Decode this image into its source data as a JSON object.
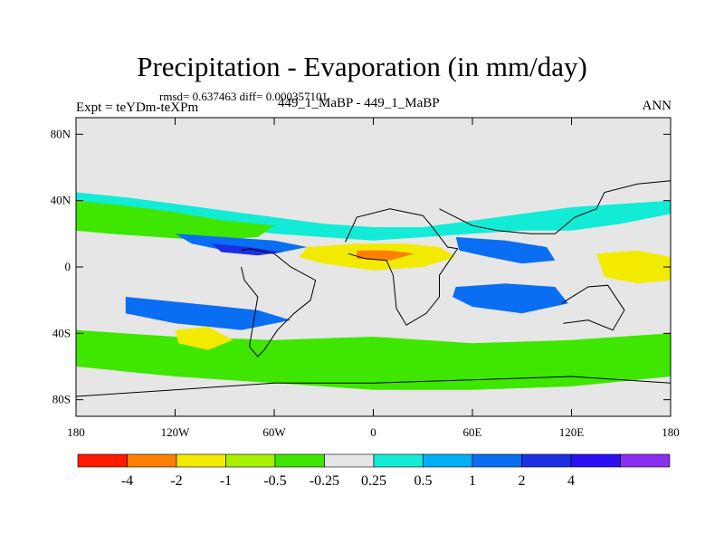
{
  "chart_data": {
    "type": "heatmap",
    "title": "Precipitation - Evaporation (in mm/day)",
    "stats": "rmsd= 0.637463 diff= 0.000357101",
    "left_label": "Expt = teYDm-teXPm",
    "center_label": "449_1_MaBP - 449_1_MaBP",
    "right_label": "ANN",
    "xlim": [
      -180,
      180
    ],
    "ylim": [
      -90,
      90
    ],
    "x_ticks": [
      {
        "value": -180,
        "label": "180"
      },
      {
        "value": -120,
        "label": "120W"
      },
      {
        "value": -60,
        "label": "60W"
      },
      {
        "value": 0,
        "label": "0"
      },
      {
        "value": 60,
        "label": "60E"
      },
      {
        "value": 120,
        "label": "120E"
      },
      {
        "value": 180,
        "label": "180"
      }
    ],
    "y_ticks": [
      {
        "value": 80,
        "label": "80N"
      },
      {
        "value": 40,
        "label": "40N"
      },
      {
        "value": 0,
        "label": "0"
      },
      {
        "value": -40,
        "label": "40S"
      },
      {
        "value": -80,
        "label": "80S"
      }
    ],
    "colorbar": {
      "levels": [
        {
          "value": -4,
          "label": "-4"
        },
        {
          "value": -2,
          "label": "-2"
        },
        {
          "value": -1,
          "label": "-1"
        },
        {
          "value": -0.5,
          "label": "-0.5"
        },
        {
          "value": -0.25,
          "label": "-0.25"
        },
        {
          "value": 0.25,
          "label": "0.25"
        },
        {
          "value": 0.5,
          "label": "0.5"
        },
        {
          "value": 1,
          "label": "1"
        },
        {
          "value": 2,
          "label": "2"
        },
        {
          "value": 4,
          "label": "4"
        }
      ],
      "colors": [
        "#ff1a00",
        "#ff7f00",
        "#f2ea00",
        "#a8ef00",
        "#3ee600",
        "#e6e6e6",
        "#12ecd6",
        "#00b0f4",
        "#0a6ef2",
        "#1c2fe3",
        "#2a10f2",
        "#8a2ef0"
      ]
    },
    "regions": [
      {
        "name": "north-subtropical-wet",
        "value": 0.35,
        "points": [
          [
            -180,
            45
          ],
          [
            -150,
            42
          ],
          [
            -120,
            38
          ],
          [
            -90,
            34
          ],
          [
            -60,
            30
          ],
          [
            -30,
            26
          ],
          [
            0,
            24
          ],
          [
            30,
            24
          ],
          [
            60,
            28
          ],
          [
            90,
            32
          ],
          [
            120,
            36
          ],
          [
            150,
            38
          ],
          [
            180,
            40
          ],
          [
            180,
            32
          ],
          [
            150,
            26
          ],
          [
            120,
            22
          ],
          [
            90,
            22
          ],
          [
            60,
            20
          ],
          [
            30,
            18
          ],
          [
            0,
            16
          ],
          [
            -30,
            18
          ],
          [
            -60,
            20
          ],
          [
            -90,
            24
          ],
          [
            -120,
            28
          ],
          [
            -150,
            30
          ],
          [
            -180,
            32
          ]
        ]
      },
      {
        "name": "north-pacific-dry",
        "value": -0.35,
        "points": [
          [
            -180,
            40
          ],
          [
            -150,
            37
          ],
          [
            -120,
            33
          ],
          [
            -90,
            28
          ],
          [
            -60,
            25
          ],
          [
            -70,
            18
          ],
          [
            -100,
            16
          ],
          [
            -130,
            18
          ],
          [
            -160,
            20
          ],
          [
            -180,
            22
          ]
        ]
      },
      {
        "name": "pacific-blue-band",
        "value": 1.5,
        "points": [
          [
            -120,
            20
          ],
          [
            -90,
            18
          ],
          [
            -60,
            16
          ],
          [
            -40,
            12
          ],
          [
            -60,
            8
          ],
          [
            -90,
            10
          ],
          [
            -110,
            14
          ]
        ]
      },
      {
        "name": "pacific-darkblue",
        "value": 3,
        "points": [
          [
            -98,
            14
          ],
          [
            -75,
            12
          ],
          [
            -55,
            9
          ],
          [
            -70,
            7
          ],
          [
            -92,
            9
          ]
        ]
      },
      {
        "name": "central-dry-band",
        "value": -1.5,
        "points": [
          [
            -40,
            12
          ],
          [
            -10,
            14
          ],
          [
            20,
            14
          ],
          [
            40,
            12
          ],
          [
            50,
            6
          ],
          [
            30,
            0
          ],
          [
            0,
            -2
          ],
          [
            -30,
            2
          ],
          [
            -45,
            6
          ]
        ]
      },
      {
        "name": "central-orange",
        "value": -3,
        "points": [
          [
            -10,
            10
          ],
          [
            10,
            10
          ],
          [
            25,
            8
          ],
          [
            10,
            4
          ],
          [
            -10,
            5
          ]
        ]
      },
      {
        "name": "indian-blue",
        "value": 1.5,
        "points": [
          [
            50,
            18
          ],
          [
            80,
            16
          ],
          [
            105,
            12
          ],
          [
            110,
            4
          ],
          [
            90,
            2
          ],
          [
            70,
            6
          ],
          [
            52,
            10
          ]
        ]
      },
      {
        "name": "south-indian-blue",
        "value": 1.5,
        "points": [
          [
            50,
            -12
          ],
          [
            80,
            -10
          ],
          [
            110,
            -12
          ],
          [
            118,
            -22
          ],
          [
            90,
            -28
          ],
          [
            60,
            -24
          ],
          [
            48,
            -18
          ]
        ]
      },
      {
        "name": "south-pacific-blue",
        "value": 1,
        "points": [
          [
            -150,
            -18
          ],
          [
            -110,
            -22
          ],
          [
            -70,
            -26
          ],
          [
            -50,
            -32
          ],
          [
            -80,
            -38
          ],
          [
            -120,
            -34
          ],
          [
            -150,
            -28
          ]
        ]
      },
      {
        "name": "south-subtropical-dry",
        "value": -0.35,
        "points": [
          [
            -180,
            -38
          ],
          [
            -120,
            -42
          ],
          [
            -60,
            -44
          ],
          [
            0,
            -42
          ],
          [
            60,
            -46
          ],
          [
            120,
            -44
          ],
          [
            180,
            -40
          ],
          [
            180,
            -66
          ],
          [
            120,
            -72
          ],
          [
            60,
            -74
          ],
          [
            0,
            -74
          ],
          [
            -60,
            -70
          ],
          [
            -120,
            -66
          ],
          [
            -180,
            -60
          ]
        ]
      },
      {
        "name": "south-atlantic-yellow",
        "value": -1.5,
        "points": [
          [
            -120,
            -38
          ],
          [
            -100,
            -36
          ],
          [
            -85,
            -44
          ],
          [
            -100,
            -50
          ],
          [
            -118,
            -46
          ]
        ]
      },
      {
        "name": "west-pacific-yellow",
        "value": -1.5,
        "points": [
          [
            135,
            8
          ],
          [
            160,
            10
          ],
          [
            180,
            6
          ],
          [
            180,
            -8
          ],
          [
            160,
            -10
          ],
          [
            140,
            -6
          ]
        ]
      }
    ],
    "coastlines": [
      {
        "name": "south-america-outline",
        "points": [
          [
            -80,
            10
          ],
          [
            -75,
            11
          ],
          [
            -60,
            8
          ],
          [
            -50,
            0
          ],
          [
            -35,
            -8
          ],
          [
            -38,
            -20
          ],
          [
            -48,
            -28
          ],
          [
            -58,
            -38
          ],
          [
            -66,
            -50
          ],
          [
            -70,
            -54
          ],
          [
            -75,
            -48
          ],
          [
            -72,
            -30
          ],
          [
            -70,
            -18
          ],
          [
            -78,
            -8
          ],
          [
            -80,
            0
          ]
        ]
      },
      {
        "name": "africa-outline",
        "points": [
          [
            -17,
            15
          ],
          [
            -10,
            30
          ],
          [
            10,
            35
          ],
          [
            30,
            31
          ],
          [
            35,
            25
          ],
          [
            45,
            12
          ],
          [
            51,
            11
          ],
          [
            40,
            -5
          ],
          [
            40,
            -18
          ],
          [
            32,
            -28
          ],
          [
            20,
            -35
          ],
          [
            14,
            -25
          ],
          [
            12,
            -5
          ],
          [
            8,
            4
          ],
          [
            -5,
            5
          ],
          [
            -15,
            8
          ]
        ]
      },
      {
        "name": "asia-outline",
        "points": [
          [
            40,
            35
          ],
          [
            60,
            25
          ],
          [
            75,
            22
          ],
          [
            95,
            20
          ],
          [
            110,
            20
          ],
          [
            122,
            30
          ],
          [
            135,
            35
          ],
          [
            140,
            45
          ],
          [
            160,
            50
          ],
          [
            180,
            52
          ]
        ]
      },
      {
        "name": "australia-outline",
        "points": [
          [
            114,
            -22
          ],
          [
            130,
            -12
          ],
          [
            142,
            -11
          ],
          [
            152,
            -26
          ],
          [
            145,
            -38
          ],
          [
            130,
            -32
          ],
          [
            115,
            -34
          ]
        ]
      },
      {
        "name": "antarctica-outline",
        "points": [
          [
            -180,
            -78
          ],
          [
            -120,
            -74
          ],
          [
            -60,
            -70
          ],
          [
            0,
            -70
          ],
          [
            60,
            -68
          ],
          [
            120,
            -66
          ],
          [
            180,
            -70
          ]
        ]
      }
    ]
  }
}
